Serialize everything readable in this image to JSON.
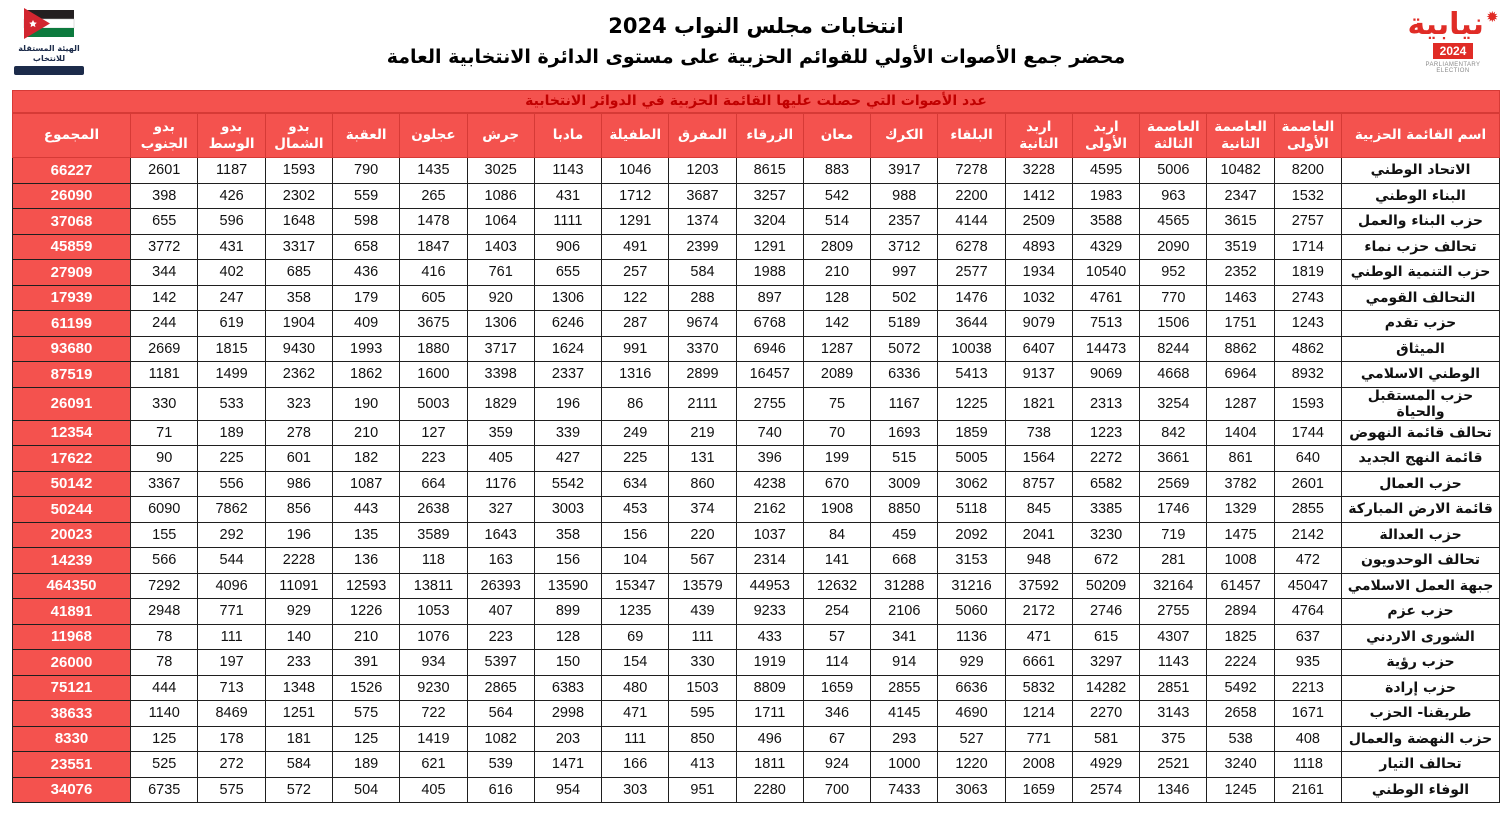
{
  "page": {
    "title_line1": "انتخابات مجلس النواب 2024",
    "title_line2": "محضر جمع الأصوات الأولي للقوائم الحزبية على مستوى الدائرة الانتخابية العامة",
    "banner": "عدد الأصوات التي حصلت عليها القائمة الحزبية في الدوائر الانتخابية"
  },
  "logos": {
    "left": {
      "line1": "الهيئة المستقلة",
      "line2": "للانتخاب"
    },
    "right": {
      "word": "نيابية",
      "year": "2024",
      "caption": "PARLIAMENTARY ELECTION",
      "accent": "#e02c26"
    }
  },
  "colors": {
    "red": "#f4524e",
    "banner_text": "#c00000",
    "grid": "#1f1f1f"
  },
  "columns": [
    {
      "key": "name",
      "label": "اسم القائمة الحزبية"
    },
    {
      "key": "d1",
      "label": "العاصمة\nالأولى"
    },
    {
      "key": "d2",
      "label": "العاصمة\nالثانية"
    },
    {
      "key": "d3",
      "label": "العاصمة\nالثالثة"
    },
    {
      "key": "d4",
      "label": "اربد\nالأولى"
    },
    {
      "key": "d5",
      "label": "اربد\nالثانية"
    },
    {
      "key": "d6",
      "label": "البلقاء"
    },
    {
      "key": "d7",
      "label": "الكرك"
    },
    {
      "key": "d8",
      "label": "معان"
    },
    {
      "key": "d9",
      "label": "الزرقاء"
    },
    {
      "key": "d10",
      "label": "المفرق"
    },
    {
      "key": "d11",
      "label": "الطفيلة"
    },
    {
      "key": "d12",
      "label": "مادبا"
    },
    {
      "key": "d13",
      "label": "جرش"
    },
    {
      "key": "d14",
      "label": "عجلون"
    },
    {
      "key": "d15",
      "label": "العقبة"
    },
    {
      "key": "d16",
      "label": "بدو\nالشمال"
    },
    {
      "key": "d17",
      "label": "بدو\nالوسط"
    },
    {
      "key": "d18",
      "label": "بدو\nالجنوب"
    },
    {
      "key": "total",
      "label": "المجموع"
    }
  ],
  "rows": [
    {
      "name": "الاتحاد الوطني",
      "values": [
        8200,
        10482,
        5006,
        4595,
        3228,
        7278,
        3917,
        883,
        8615,
        1203,
        1046,
        1143,
        3025,
        1435,
        790,
        1593,
        1187,
        2601
      ],
      "total": 66227
    },
    {
      "name": "البناء الوطني",
      "values": [
        1532,
        2347,
        963,
        1983,
        1412,
        2200,
        988,
        542,
        3257,
        3687,
        1712,
        431,
        1086,
        265,
        559,
        2302,
        426,
        398
      ],
      "total": 26090
    },
    {
      "name": "حزب البناء والعمل",
      "values": [
        2757,
        3615,
        4565,
        3588,
        2509,
        4144,
        2357,
        514,
        3204,
        1374,
        1291,
        1111,
        1064,
        1478,
        598,
        1648,
        596,
        655
      ],
      "total": 37068
    },
    {
      "name": "تحالف حزب نماء",
      "values": [
        1714,
        3519,
        2090,
        4329,
        4893,
        6278,
        3712,
        2809,
        1291,
        2399,
        491,
        906,
        1403,
        1847,
        658,
        3317,
        431,
        3772
      ],
      "total": 45859
    },
    {
      "name": "حزب التنمية الوطني",
      "values": [
        1819,
        2352,
        952,
        10540,
        1934,
        2577,
        997,
        210,
        1988,
        584,
        257,
        655,
        761,
        416,
        436,
        685,
        402,
        344
      ],
      "total": 27909
    },
    {
      "name": "التحالف القومي",
      "values": [
        2743,
        1463,
        770,
        4761,
        1032,
        1476,
        502,
        128,
        897,
        288,
        122,
        1306,
        920,
        605,
        179,
        358,
        247,
        142
      ],
      "total": 17939
    },
    {
      "name": "حزب تقدم",
      "values": [
        1243,
        1751,
        1506,
        7513,
        9079,
        3644,
        5189,
        142,
        6768,
        9674,
        287,
        6246,
        1306,
        3675,
        409,
        1904,
        619,
        244
      ],
      "total": 61199
    },
    {
      "name": "الميثاق",
      "values": [
        4862,
        8862,
        8244,
        14473,
        6407,
        10038,
        5072,
        1287,
        6946,
        3370,
        991,
        1624,
        3717,
        1880,
        1993,
        9430,
        1815,
        2669
      ],
      "total": 93680
    },
    {
      "name": "الوطني الاسلامي",
      "values": [
        8932,
        6964,
        4668,
        9069,
        9137,
        5413,
        6336,
        2089,
        16457,
        2899,
        1316,
        2337,
        3398,
        1600,
        1862,
        2362,
        1499,
        1181
      ],
      "total": 87519
    },
    {
      "name": "حزب المستقبل والحياة",
      "values": [
        1593,
        1287,
        3254,
        2313,
        1821,
        1225,
        1167,
        75,
        2755,
        2111,
        86,
        196,
        1829,
        5003,
        190,
        323,
        533,
        330
      ],
      "total": 26091
    },
    {
      "name": "تحالف قائمة النهوض",
      "values": [
        1744,
        1404,
        842,
        1223,
        738,
        1859,
        1693,
        70,
        740,
        219,
        249,
        339,
        359,
        127,
        210,
        278,
        189,
        71
      ],
      "total": 12354
    },
    {
      "name": "قائمة النهج الجديد",
      "values": [
        640,
        861,
        3661,
        2272,
        1564,
        5005,
        515,
        199,
        396,
        131,
        225,
        427,
        405,
        223,
        182,
        601,
        225,
        90
      ],
      "total": 17622
    },
    {
      "name": "حزب العمال",
      "values": [
        2601,
        3782,
        2569,
        6582,
        8757,
        3062,
        3009,
        670,
        4238,
        860,
        634,
        5542,
        1176,
        664,
        1087,
        986,
        556,
        3367
      ],
      "total": 50142
    },
    {
      "name": "قائمة الارض المباركة",
      "values": [
        2855,
        1329,
        1746,
        3385,
        845,
        5118,
        8850,
        1908,
        2162,
        374,
        453,
        3003,
        327,
        2638,
        443,
        856,
        7862,
        6090
      ],
      "total": 50244
    },
    {
      "name": "حزب العدالة",
      "values": [
        2142,
        1475,
        719,
        3230,
        2041,
        2092,
        459,
        84,
        1037,
        220,
        156,
        358,
        1643,
        3589,
        135,
        196,
        292,
        155
      ],
      "total": 20023
    },
    {
      "name": "تحالف الوحدويون",
      "values": [
        472,
        1008,
        281,
        672,
        948,
        3153,
        668,
        141,
        2314,
        567,
        104,
        156,
        163,
        118,
        136,
        2228,
        544,
        566
      ],
      "total": 14239
    },
    {
      "name": "جبهة العمل الاسلامي",
      "values": [
        45047,
        61457,
        32164,
        50209,
        37592,
        31216,
        31288,
        12632,
        44953,
        13579,
        15347,
        13590,
        26393,
        13811,
        12593,
        11091,
        4096,
        7292
      ],
      "total": 464350
    },
    {
      "name": "حزب عزم",
      "values": [
        4764,
        2894,
        2755,
        2746,
        2172,
        5060,
        2106,
        254,
        9233,
        439,
        1235,
        899,
        407,
        1053,
        1226,
        929,
        771,
        2948
      ],
      "total": 41891
    },
    {
      "name": "الشورى الاردني",
      "values": [
        637,
        1825,
        4307,
        615,
        471,
        1136,
        341,
        57,
        433,
        111,
        69,
        128,
        223,
        1076,
        210,
        140,
        111,
        78
      ],
      "total": 11968
    },
    {
      "name": "حزب رؤية",
      "values": [
        935,
        2224,
        1143,
        3297,
        6661,
        929,
        914,
        114,
        1919,
        330,
        154,
        150,
        5397,
        934,
        391,
        233,
        197,
        78
      ],
      "total": 26000
    },
    {
      "name": "حزب إرادة",
      "values": [
        2213,
        5492,
        2851,
        14282,
        5832,
        6636,
        2855,
        1659,
        8809,
        1503,
        480,
        6383,
        2865,
        9230,
        1526,
        1348,
        713,
        444
      ],
      "total": 75121
    },
    {
      "name": "طريقنا- الحزب",
      "values": [
        1671,
        2658,
        3143,
        2270,
        1214,
        4690,
        4145,
        346,
        1711,
        595,
        471,
        2998,
        564,
        722,
        575,
        1251,
        8469,
        1140
      ],
      "total": 38633
    },
    {
      "name": "حزب النهضة والعمال",
      "values": [
        408,
        538,
        375,
        581,
        771,
        527,
        293,
        67,
        496,
        850,
        111,
        203,
        1082,
        1419,
        125,
        181,
        178,
        125
      ],
      "total": 8330
    },
    {
      "name": "تحالف التيار",
      "values": [
        1118,
        3240,
        2521,
        4929,
        2008,
        1220,
        1000,
        924,
        1811,
        413,
        166,
        1471,
        539,
        621,
        189,
        584,
        272,
        525
      ],
      "total": 23551
    },
    {
      "name": "الوفاء الوطني",
      "values": [
        2161,
        1245,
        1346,
        2574,
        1659,
        3063,
        7433,
        700,
        2280,
        951,
        303,
        954,
        616,
        405,
        504,
        572,
        575,
        6735
      ],
      "total": 34076
    }
  ]
}
